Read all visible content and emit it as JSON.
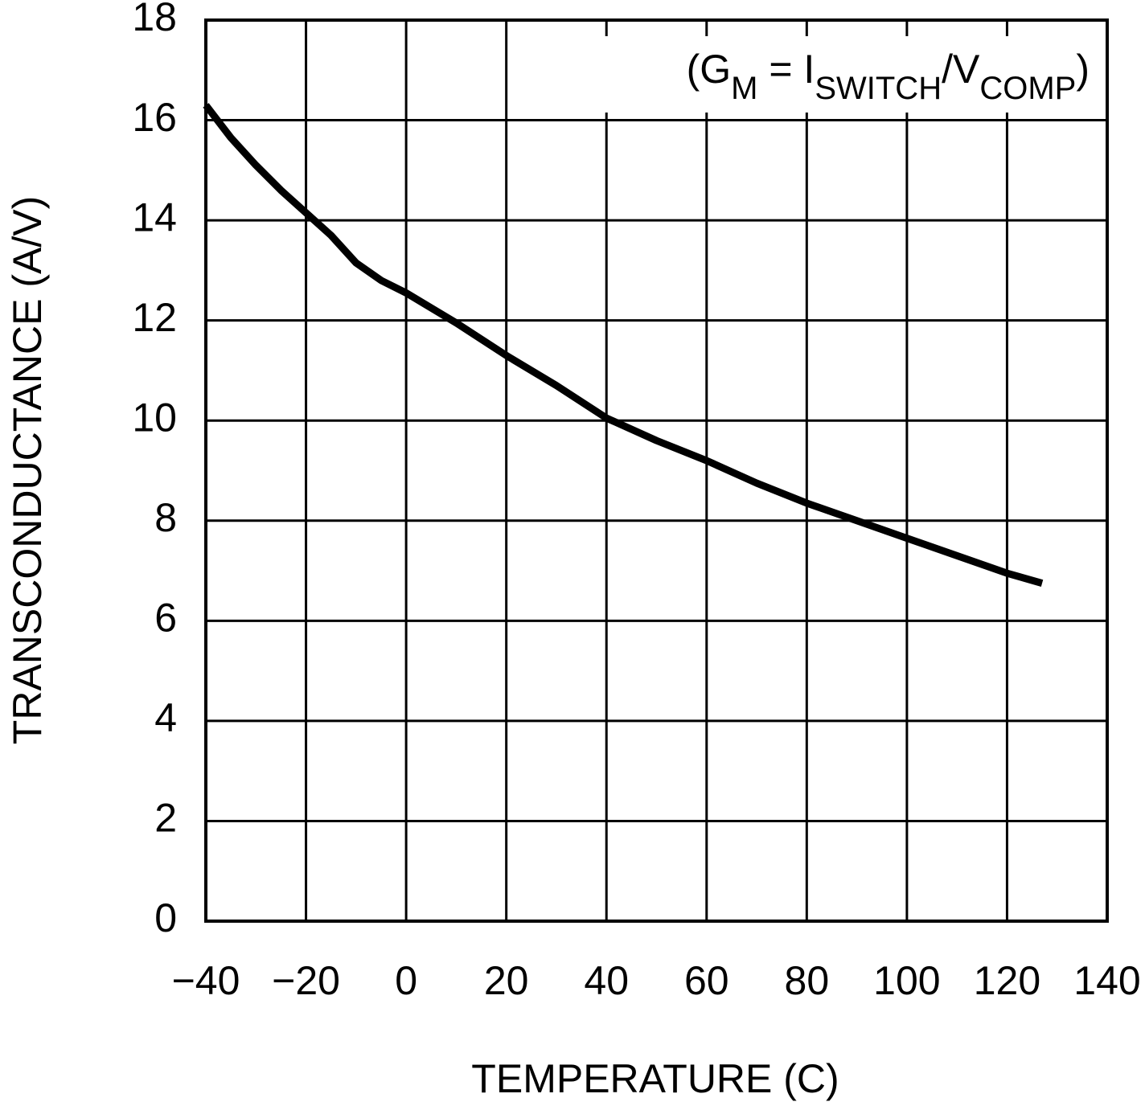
{
  "chart_data": {
    "type": "line",
    "annotation": {
      "parts": [
        "(G",
        "M",
        " = I",
        "SWITCH",
        "/V",
        "COMP",
        ")"
      ]
    },
    "xlabel": "TEMPERATURE (C)",
    "ylabel": "TRANSCONDUCTANCE (A/V)",
    "x": [
      -40,
      -35,
      -30,
      -25,
      -20,
      -15,
      -10,
      -5,
      0,
      10,
      20,
      30,
      40,
      50,
      60,
      70,
      80,
      90,
      100,
      110,
      120,
      127
    ],
    "series": [
      {
        "name": "Transconductance",
        "color": "#000000",
        "values": [
          16.3,
          15.65,
          15.1,
          14.6,
          14.15,
          13.7,
          13.15,
          12.8,
          12.55,
          11.95,
          11.3,
          10.7,
          10.05,
          9.6,
          9.2,
          8.75,
          8.35,
          8.0,
          7.65,
          7.3,
          6.95,
          6.75
        ]
      }
    ],
    "xlim": [
      -40,
      140
    ],
    "xticks": [
      {
        "value": -40,
        "label": "−40"
      },
      {
        "value": -20,
        "label": "−20"
      },
      0,
      20,
      40,
      60,
      80,
      100,
      120,
      140
    ],
    "ylim": [
      0,
      18
    ],
    "yticks": [
      0,
      2,
      4,
      6,
      8,
      10,
      12,
      14,
      16,
      18
    ],
    "grid": true
  }
}
